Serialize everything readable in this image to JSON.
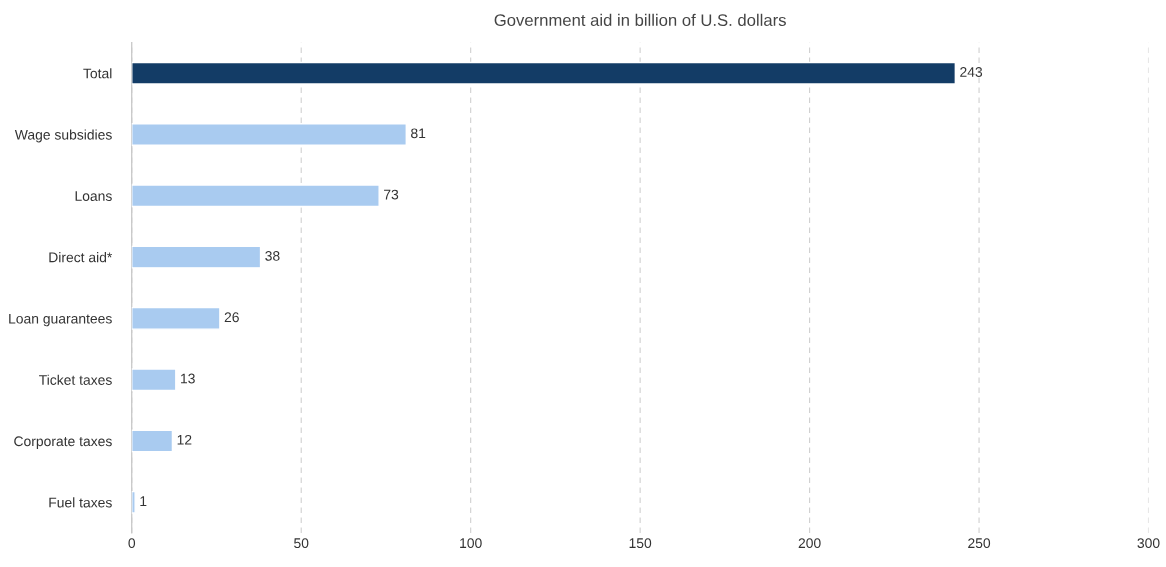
{
  "chart_data": {
    "type": "bar",
    "orientation": "horizontal",
    "title": "Government aid in billion of U.S. dollars",
    "categories": [
      "Total",
      "Wage subsidies",
      "Loans",
      "Direct aid*",
      "Loan guarantees",
      "Ticket taxes",
      "Corporate taxes",
      "Fuel taxes"
    ],
    "values": [
      243,
      81,
      73,
      38,
      26,
      13,
      12,
      1
    ],
    "colors": [
      "#133c66",
      "#a9cbf0",
      "#a9cbf0",
      "#a9cbf0",
      "#a9cbf0",
      "#a9cbf0",
      "#a9cbf0",
      "#a9cbf0"
    ],
    "xlim": [
      0,
      300
    ],
    "xticks": [
      0,
      50,
      100,
      150,
      200,
      250,
      300
    ],
    "grid": "x",
    "data_labels": true
  }
}
